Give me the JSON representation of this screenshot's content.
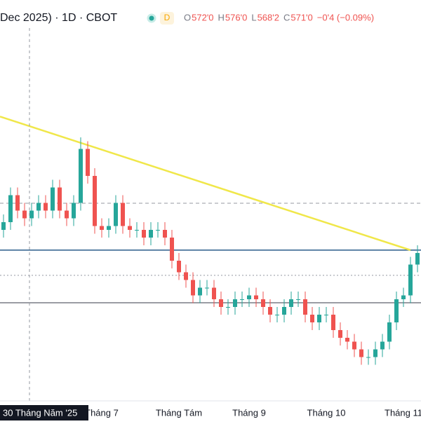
{
  "header": {
    "symbol": "Dec 2025) · 1D · CBOT",
    "badge": "D",
    "ohlc": [
      {
        "key": "O",
        "value": "572'0"
      },
      {
        "key": "H",
        "value": "576'0"
      },
      {
        "key": "L",
        "value": "568'2"
      },
      {
        "key": "C",
        "value": "571'0"
      }
    ],
    "change": "−0'4 (−0.09%)"
  },
  "crosshair_label": "30 Tháng Năm '25",
  "chart_data": {
    "type": "candlestick",
    "categories": [
      null,
      null,
      null,
      null,
      null,
      null,
      null,
      null,
      null,
      null,
      null,
      null,
      null,
      null,
      "Tháng 7",
      null,
      null,
      null,
      null,
      null,
      null,
      null,
      null,
      null,
      null,
      "Tháng Tám",
      null,
      null,
      null,
      null,
      null,
      null,
      null,
      null,
      null,
      "Tháng 9",
      null,
      null,
      null,
      null,
      null,
      null,
      null,
      null,
      null,
      null,
      "Tháng 10",
      null,
      null,
      null,
      null,
      null,
      null,
      null,
      null,
      null,
      null,
      "Tháng 11",
      null,
      null
    ],
    "open": [
      584,
      586,
      593,
      589,
      587,
      589,
      591,
      589,
      595,
      589,
      587,
      591,
      605,
      598,
      585,
      584,
      585,
      591,
      585,
      584,
      584,
      582,
      584,
      584,
      582,
      576,
      573,
      571,
      567,
      569,
      569,
      566,
      564,
      564,
      566,
      566,
      567,
      566,
      564,
      562,
      562,
      564,
      566,
      566,
      562,
      560,
      562,
      562,
      558,
      556,
      555,
      553,
      551,
      551,
      553,
      555,
      560,
      566,
      567,
      575
    ],
    "high": [
      588,
      595,
      595,
      591,
      591,
      593,
      593,
      597,
      597,
      591,
      593,
      608,
      607,
      600,
      587,
      587,
      593,
      593,
      587,
      586,
      586,
      586,
      586,
      586,
      584,
      578,
      575,
      573,
      571,
      571,
      571,
      568,
      566,
      568,
      568,
      569,
      569,
      568,
      566,
      564,
      566,
      568,
      568,
      568,
      564,
      564,
      564,
      564,
      560,
      558,
      557,
      555,
      553,
      555,
      557,
      562,
      568,
      569,
      577,
      580
    ],
    "low": [
      582,
      584,
      587,
      585,
      585,
      587,
      587,
      587,
      587,
      585,
      585,
      589,
      596,
      583,
      582,
      582,
      583,
      583,
      582,
      582,
      580,
      580,
      582,
      580,
      574,
      571,
      569,
      565,
      565,
      567,
      564,
      562,
      562,
      562,
      564,
      564,
      564,
      562,
      560,
      560,
      560,
      562,
      564,
      560,
      558,
      558,
      560,
      556,
      554,
      553,
      551,
      549,
      549,
      549,
      551,
      553,
      558,
      564,
      565,
      573
    ],
    "close": [
      586,
      593,
      589,
      587,
      589,
      591,
      589,
      595,
      589,
      587,
      591,
      605,
      598,
      585,
      584,
      585,
      591,
      585,
      584,
      584,
      582,
      584,
      584,
      582,
      576,
      573,
      571,
      567,
      569,
      569,
      566,
      564,
      564,
      566,
      566,
      567,
      566,
      564,
      562,
      562,
      564,
      566,
      566,
      562,
      560,
      562,
      562,
      558,
      556,
      555,
      553,
      551,
      551,
      553,
      555,
      560,
      566,
      567,
      575,
      578
    ],
    "up_color": "#26a69a",
    "down_color": "#ef5350",
    "ylim": [
      540,
      640
    ],
    "hlines": [
      {
        "value": 578.75,
        "color": "#2a5c8a",
        "style": "solid"
      },
      {
        "value": 565.1,
        "color": "#787b86",
        "style": "solid"
      },
      {
        "value": 590.9,
        "color": "#9598a1",
        "style": "dashed"
      },
      {
        "value": 572.2,
        "color": "#9598a1",
        "style": "dotted"
      }
    ],
    "trendline": {
      "from_index": 0,
      "from_value": 613.1,
      "to_index": 58,
      "to_value": 578.75,
      "color": "#f0e74a"
    }
  }
}
